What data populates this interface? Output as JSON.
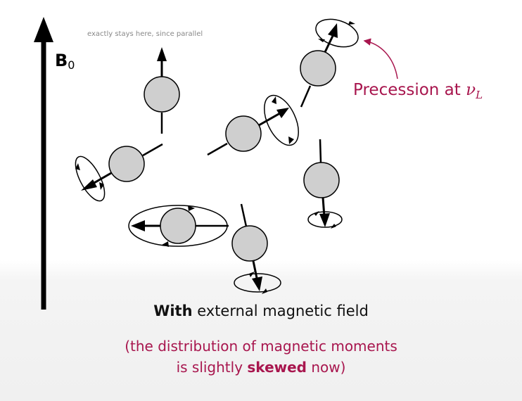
{
  "axis": {
    "label_main": "B",
    "label_sub": "0"
  },
  "note": "exactly stays here, since parallel",
  "precession": {
    "text": "Precession at ",
    "symbol": "ν",
    "symbol_sub": "L"
  },
  "caption": {
    "bold": "With",
    "rest": " external magnetic field",
    "line2": "(the distribution of magnetic moments",
    "line3_pre": "is slightly ",
    "line3_bold": "skewed",
    "line3_post": " now)"
  },
  "colors": {
    "accent": "#a8164e",
    "sphere_fill": "#cfcfcf",
    "ink": "#000000"
  }
}
